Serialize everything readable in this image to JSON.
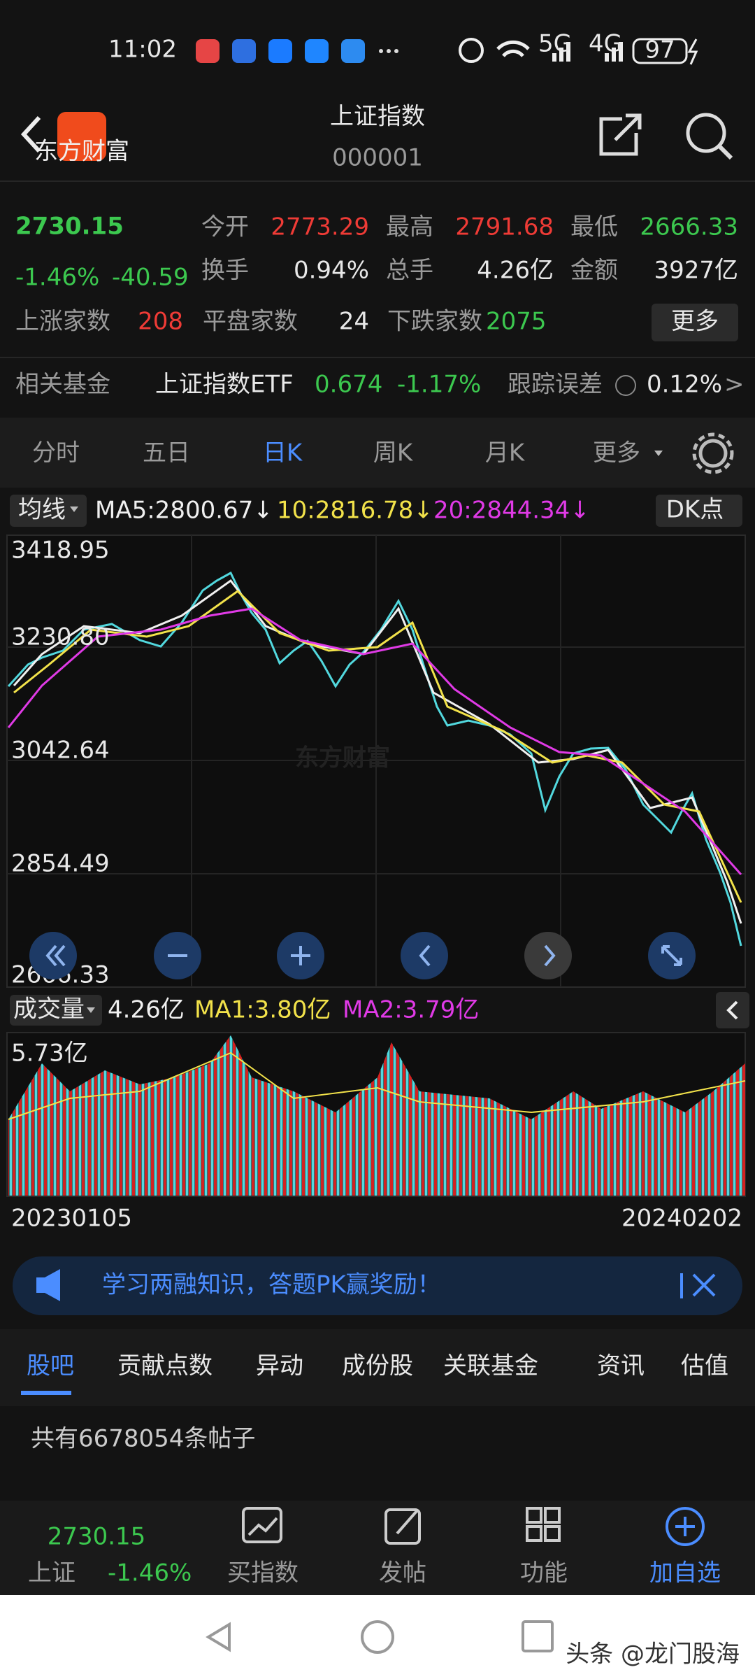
{
  "status": {
    "time": "11:02",
    "battery": "97",
    "net1": "5G",
    "net2": "4G"
  },
  "header": {
    "title": "上证指数",
    "code": "000001",
    "logo": "东方财富"
  },
  "quote": {
    "price": "2730.15",
    "change_pct": "-1.46%",
    "change": "-40.59",
    "fields": [
      {
        "label": "今开",
        "value": "2773.29"
      },
      {
        "label": "最高",
        "value": "2791.68"
      },
      {
        "label": "最低",
        "value": "2666.33"
      },
      {
        "label": "换手",
        "value": "0.94%"
      },
      {
        "label": "总手",
        "value": "4.26亿"
      },
      {
        "label": "金额",
        "value": "3927亿"
      }
    ],
    "breadth": [
      {
        "label": "上涨家数",
        "value": "208"
      },
      {
        "label": "平盘家数",
        "value": "24"
      },
      {
        "label": "下跌家数",
        "value": "2075"
      }
    ],
    "more": "更多"
  },
  "fund": {
    "label": "相关基金",
    "name": "上证指数ETF",
    "price": "0.674",
    "pct": "-1.17%",
    "err_label": "跟踪误差",
    "err": "0.12%",
    "arrow": ">"
  },
  "tabs": [
    "分时",
    "五日",
    "日K",
    "周K",
    "月K",
    "更多"
  ],
  "chart": {
    "ma_button": "均线",
    "ma5": "MA5:2800.67↓",
    "ma10": "10:2816.78↓",
    "ma20": "20:2844.34↓",
    "dk": "DK点",
    "yaxis": [
      "3418.95",
      "3230.80",
      "3042.64",
      "2854.49",
      "2666.33"
    ],
    "watermark": "东方财富",
    "vol_button": "成交量",
    "volume": "4.26亿",
    "ma1": "MA1:3.80亿",
    "ma2": "MA2:3.79亿",
    "vol_max": "5.73亿",
    "start_date": "20230105",
    "end_date": "20240202"
  },
  "banner": "学习两融知识，答题PK赢奖励！",
  "tabs2": [
    "股吧",
    "贡献点数",
    "异动",
    "成份股",
    "关联基金",
    "资讯",
    "估值"
  ],
  "post_count": "共有6678054条帖子",
  "bottom": {
    "price": "2730.15",
    "name": "上证",
    "pct": "-1.46%",
    "items": [
      "买指数",
      "发帖",
      "功能",
      "加自选"
    ]
  },
  "footer": "头条 @龙门股海"
}
